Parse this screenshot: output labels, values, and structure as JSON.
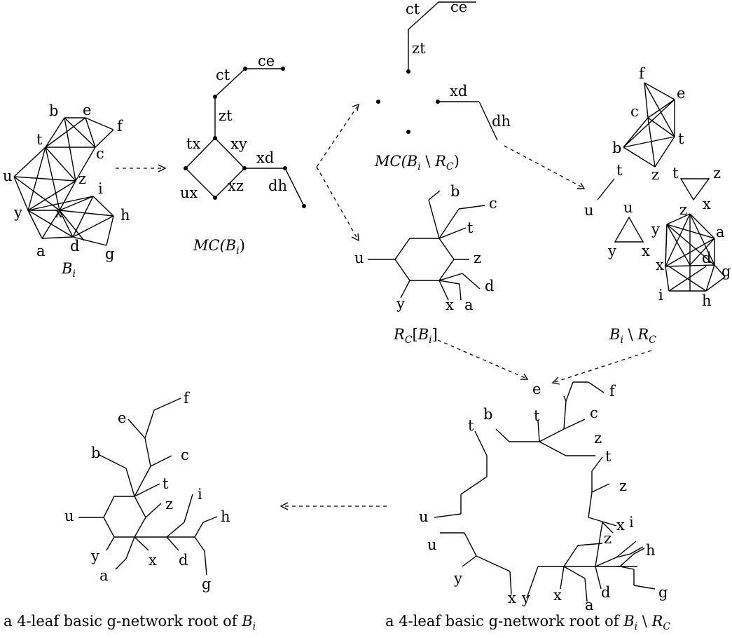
{
  "captions": {
    "bi": "B",
    "bi_sub": "i",
    "mc_bi_open": "MC(",
    "mc_bi_b": "B",
    "mc_bi_sub": "i",
    "mc_bi_close": ")",
    "mc_diff_open": "MC(",
    "mc_diff_b": "B",
    "mc_diff_sub": "i",
    "mc_diff_set": " \\ ",
    "mc_diff_r": "R",
    "mc_diff_rsub": "C",
    "mc_diff_close": ")",
    "rc_r": "R",
    "rc_sub": "C",
    "rc_open": "[",
    "rc_b": "B",
    "rc_bsub": "i",
    "rc_close": "]",
    "bdiff_b": "B",
    "bdiff_sub": "i",
    "bdiff_set": " \\ ",
    "bdiff_r": "R",
    "bdiff_rsub": "C",
    "root_bi_text": "a 4-leaf basic g-network root of ",
    "root_bi_b": "B",
    "root_bi_sub": "i",
    "root_diff_text": "a 4-leaf basic g-network root of ",
    "root_diff_b": "B",
    "root_diff_sub": "i",
    "root_diff_set": " \\ ",
    "root_diff_r": "R",
    "root_diff_rsub": "C"
  },
  "graph_bi": {
    "labels": {
      "b": "b",
      "e": "e",
      "f": "f",
      "t": "t",
      "c": "c",
      "u": "u",
      "z": "z",
      "i": "i",
      "y": "y",
      "x": "x",
      "h": "h",
      "a": "a",
      "d": "d",
      "g": "g"
    }
  },
  "mc_bi": {
    "labels": {
      "ct": "ct",
      "ce": "ce",
      "zt": "zt",
      "tx": "tx",
      "xy": "xy",
      "xd": "xd",
      "ux": "ux",
      "xz": "xz",
      "dh": "dh"
    }
  },
  "mc_diff": {
    "labels": {
      "ct": "ct",
      "ce": "ce",
      "zt": "zt",
      "xd": "xd",
      "dh": "dh"
    }
  },
  "rc_bi": {
    "labels": {
      "b": "b",
      "c": "c",
      "t": "t",
      "u": "u",
      "z": "z",
      "d": "d",
      "y": "y",
      "x": "x",
      "a": "a"
    }
  },
  "bi_diff": {
    "labels": {
      "f": "f",
      "e": "e",
      "c": "c",
      "b": "b",
      "t": "t",
      "t2": "t",
      "z": "z",
      "u": "u",
      "x": "x",
      "u2": "u",
      "y": "y",
      "x2": "x",
      "z2": "z",
      "a": "a",
      "d": "d",
      "g": "g",
      "i": "i",
      "h": "h"
    }
  },
  "root_bi": {
    "labels": {
      "f": "f",
      "e": "e",
      "b": "b",
      "c": "c",
      "t": "t",
      "u": "u",
      "z": "z",
      "i": "i",
      "h": "h",
      "y": "y",
      "x": "x",
      "d": "d",
      "a": "a",
      "g": "g"
    }
  },
  "root_diff": {
    "labels": {
      "e": "e",
      "f": "f",
      "b": "b",
      "t": "t",
      "t2": "t",
      "c": "c",
      "z": "z",
      "t3": "t",
      "z3": "z",
      "u": "u",
      "x": "x",
      "i": "i",
      "u2": "u",
      "z2": "z",
      "h": "h",
      "y": "y",
      "x2": "x",
      "y2": "y",
      "x3": "x",
      "d": "d",
      "a": "a",
      "g": "g"
    }
  }
}
